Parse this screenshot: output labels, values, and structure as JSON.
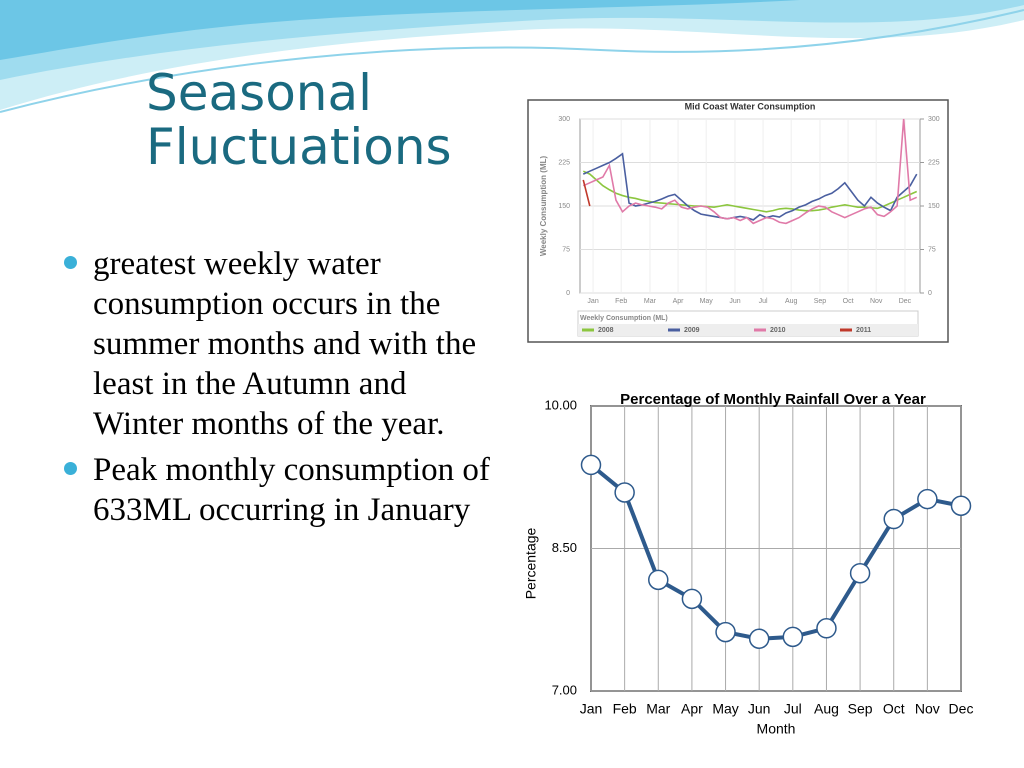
{
  "title": "Seasonal Fluctuations",
  "bullets": [
    "greatest weekly water consumption occurs in the summer months and with the least in the Autumn and Winter months of the year.",
    "Peak monthly consumption of 633ML occurring in January"
  ],
  "chart_data": [
    {
      "type": "line",
      "title": "Mid Coast Water Consumption",
      "ylabel": "Weekly Consumption (ML)",
      "legend_title": "Weekly Consumption (ML)",
      "x": [
        1,
        2,
        3,
        4,
        5,
        6,
        7,
        8,
        9,
        10,
        11,
        12,
        13,
        14,
        15,
        16,
        17,
        18,
        19,
        20,
        21,
        22,
        23,
        24,
        25,
        26,
        27,
        28,
        29,
        30,
        31,
        32,
        33,
        34,
        35,
        36,
        37,
        38,
        39,
        40,
        41,
        42,
        43,
        44,
        45,
        46,
        47,
        48,
        49,
        50,
        51,
        52
      ],
      "xlim": [
        0.5,
        52.5
      ],
      "xticks": [
        {
          "value": 2.5,
          "label": "Jan"
        },
        {
          "value": 6.8,
          "label": "Feb"
        },
        {
          "value": 11.2,
          "label": "Mar"
        },
        {
          "value": 15.5,
          "label": "Apr"
        },
        {
          "value": 19.8,
          "label": "May"
        },
        {
          "value": 24.2,
          "label": "Jun"
        },
        {
          "value": 28.5,
          "label": "Jul"
        },
        {
          "value": 32.8,
          "label": "Aug"
        },
        {
          "value": 37.2,
          "label": "Sep"
        },
        {
          "value": 41.5,
          "label": "Oct"
        },
        {
          "value": 45.8,
          "label": "Nov"
        },
        {
          "value": 50.2,
          "label": "Dec"
        }
      ],
      "ylim": [
        0,
        300
      ],
      "yticks": [
        0,
        75,
        150,
        225,
        300
      ],
      "y2lim": [
        0,
        300
      ],
      "y2ticks": [
        0,
        75,
        150,
        225,
        300
      ],
      "grid": true,
      "series": [
        {
          "name": "2008",
          "color": "#8cc63f",
          "values": [
            210,
            205,
            195,
            185,
            178,
            172,
            168,
            165,
            163,
            160,
            158,
            156,
            155,
            154,
            153,
            152,
            151,
            150,
            150,
            149,
            148,
            150,
            152,
            150,
            148,
            146,
            144,
            142,
            140,
            142,
            145,
            146,
            145,
            143,
            142,
            142,
            143,
            145,
            148,
            150,
            152,
            150,
            148,
            148,
            147,
            146,
            150,
            155,
            160,
            165,
            170,
            175
          ]
        },
        {
          "name": "2009",
          "color": "#4a5fa0",
          "values": [
            205,
            210,
            215,
            220,
            225,
            232,
            240,
            155,
            150,
            152,
            155,
            158,
            162,
            167,
            170,
            160,
            150,
            142,
            136,
            134,
            132,
            130,
            128,
            130,
            132,
            130,
            126,
            135,
            130,
            133,
            131,
            138,
            142,
            148,
            152,
            158,
            162,
            168,
            172,
            180,
            190,
            175,
            160,
            150,
            165,
            155,
            148,
            142,
            165,
            175,
            185,
            205
          ]
        },
        {
          "name": "2010",
          "color": "#e07aa8",
          "values": [
            185,
            190,
            195,
            200,
            220,
            160,
            140,
            150,
            155,
            152,
            150,
            148,
            145,
            155,
            160,
            148,
            145,
            148,
            150,
            148,
            140,
            130,
            128,
            130,
            125,
            130,
            120,
            125,
            130,
            128,
            122,
            120,
            125,
            130,
            138,
            145,
            150,
            148,
            140,
            135,
            130,
            135,
            140,
            145,
            148,
            135,
            132,
            140,
            150,
            300,
            160,
            165
          ]
        },
        {
          "name": "2011",
          "color": "#c0392b",
          "values": [
            195,
            150,
            null,
            null,
            null,
            null,
            null,
            null,
            null,
            null,
            null,
            null,
            null,
            null,
            null,
            null,
            null,
            null,
            null,
            null,
            null,
            null,
            null,
            null,
            null,
            null,
            null,
            null,
            null,
            null,
            null,
            null,
            null,
            null,
            null,
            null,
            null,
            null,
            null,
            null,
            null,
            null,
            null,
            null,
            null,
            null,
            null,
            null,
            null,
            null,
            null,
            null
          ]
        }
      ]
    },
    {
      "type": "line",
      "title": "Percentage of Monthly Rainfall Over a Year",
      "xlabel": "Month",
      "ylabel": "Percentage",
      "categories": [
        "Jan",
        "Feb",
        "Mar",
        "Apr",
        "May",
        "Jun",
        "Jul",
        "Aug",
        "Sep",
        "Oct",
        "Nov",
        "Dec"
      ],
      "values": [
        9.38,
        9.09,
        8.17,
        7.97,
        7.62,
        7.55,
        7.57,
        7.66,
        8.24,
        8.81,
        9.02,
        8.95
      ],
      "color": "#2e5a8c",
      "ylim": [
        7,
        10
      ],
      "yticks": [
        {
          "value": 7,
          "label": "7.00"
        },
        {
          "value": 8.5,
          "label": "8.50"
        },
        {
          "value": 10,
          "label": "10.00"
        }
      ],
      "grid": true
    }
  ]
}
